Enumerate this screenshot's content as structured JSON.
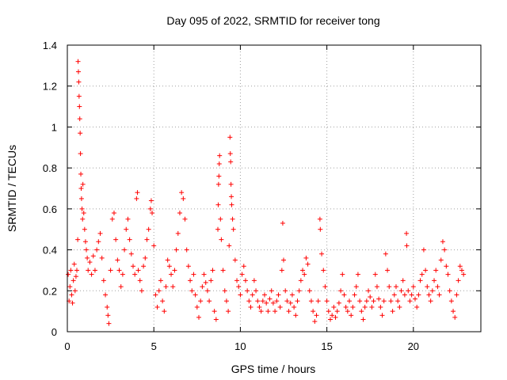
{
  "chart_data": {
    "type": "scatter",
    "title": "Day 095 of 2022, SRMTID for receiver tong",
    "xlabel": "GPS time / hours",
    "ylabel": "SRMTID / TECUs",
    "xlim": [
      0,
      23.9
    ],
    "ylim": [
      0,
      1.4
    ],
    "grid": true,
    "marker": "+",
    "color": "#ff0000",
    "xticks": [
      0,
      5,
      10,
      15,
      20
    ],
    "yticks": [
      0,
      0.2,
      0.4,
      0.6,
      0.8,
      1,
      1.2,
      1.4
    ],
    "xtick_labels": [
      "0",
      "5",
      "10",
      "15",
      "20"
    ],
    "ytick_labels": [
      "0",
      "0.2",
      "0.4",
      "0.6",
      "0.8",
      "1",
      "1.2",
      "1.4"
    ],
    "series": [
      {
        "name": "SRMTID",
        "points": [
          [
            0.05,
            0.28
          ],
          [
            0.1,
            0.15
          ],
          [
            0.15,
            0.22
          ],
          [
            0.2,
            0.3
          ],
          [
            0.25,
            0.18
          ],
          [
            0.3,
            0.14
          ],
          [
            0.35,
            0.25
          ],
          [
            0.4,
            0.33
          ],
          [
            0.45,
            0.2
          ],
          [
            0.5,
            0.27
          ],
          [
            0.55,
            0.3
          ],
          [
            0.6,
            0.45
          ],
          [
            0.62,
            1.32
          ],
          [
            0.64,
            1.27
          ],
          [
            0.66,
            1.22
          ],
          [
            0.68,
            1.15
          ],
          [
            0.7,
            1.1
          ],
          [
            0.72,
            1.04
          ],
          [
            0.74,
            0.97
          ],
          [
            0.76,
            0.87
          ],
          [
            0.78,
            0.77
          ],
          [
            0.8,
            0.7
          ],
          [
            0.82,
            0.65
          ],
          [
            0.85,
            0.6
          ],
          [
            0.88,
            0.55
          ],
          [
            0.9,
            0.72
          ],
          [
            0.95,
            0.58
          ],
          [
            1.0,
            0.5
          ],
          [
            1.05,
            0.44
          ],
          [
            1.1,
            0.4
          ],
          [
            1.15,
            0.36
          ],
          [
            1.2,
            0.3
          ],
          [
            1.3,
            0.34
          ],
          [
            1.4,
            0.28
          ],
          [
            1.5,
            0.37
          ],
          [
            1.6,
            0.3
          ],
          [
            1.7,
            0.4
          ],
          [
            1.8,
            0.44
          ],
          [
            1.9,
            0.48
          ],
          [
            2.0,
            0.36
          ],
          [
            2.1,
            0.25
          ],
          [
            2.2,
            0.18
          ],
          [
            2.3,
            0.12
          ],
          [
            2.35,
            0.08
          ],
          [
            2.4,
            0.04
          ],
          [
            2.5,
            0.3
          ],
          [
            2.6,
            0.55
          ],
          [
            2.7,
            0.58
          ],
          [
            2.8,
            0.45
          ],
          [
            2.9,
            0.35
          ],
          [
            3.0,
            0.3
          ],
          [
            3.1,
            0.22
          ],
          [
            3.2,
            0.28
          ],
          [
            3.3,
            0.4
          ],
          [
            3.4,
            0.5
          ],
          [
            3.5,
            0.55
          ],
          [
            3.6,
            0.45
          ],
          [
            3.7,
            0.38
          ],
          [
            3.8,
            0.32
          ],
          [
            3.9,
            0.28
          ],
          [
            4.0,
            0.65
          ],
          [
            4.05,
            0.68
          ],
          [
            4.1,
            0.3
          ],
          [
            4.2,
            0.25
          ],
          [
            4.3,
            0.2
          ],
          [
            4.4,
            0.32
          ],
          [
            4.5,
            0.36
          ],
          [
            4.6,
            0.45
          ],
          [
            4.7,
            0.5
          ],
          [
            4.8,
            0.6
          ],
          [
            4.85,
            0.64
          ],
          [
            4.9,
            0.58
          ],
          [
            5.0,
            0.42
          ],
          [
            5.1,
            0.18
          ],
          [
            5.2,
            0.12
          ],
          [
            5.3,
            0.2
          ],
          [
            5.4,
            0.25
          ],
          [
            5.5,
            0.15
          ],
          [
            5.6,
            0.1
          ],
          [
            5.7,
            0.22
          ],
          [
            5.8,
            0.35
          ],
          [
            5.9,
            0.32
          ],
          [
            6.0,
            0.28
          ],
          [
            6.1,
            0.22
          ],
          [
            6.2,
            0.3
          ],
          [
            6.3,
            0.4
          ],
          [
            6.4,
            0.48
          ],
          [
            6.5,
            0.58
          ],
          [
            6.6,
            0.68
          ],
          [
            6.7,
            0.65
          ],
          [
            6.8,
            0.55
          ],
          [
            6.9,
            0.4
          ],
          [
            7.0,
            0.32
          ],
          [
            7.1,
            0.25
          ],
          [
            7.2,
            0.2
          ],
          [
            7.3,
            0.28
          ],
          [
            7.4,
            0.18
          ],
          [
            7.5,
            0.12
          ],
          [
            7.6,
            0.07
          ],
          [
            7.7,
            0.15
          ],
          [
            7.8,
            0.22
          ],
          [
            7.9,
            0.28
          ],
          [
            8.0,
            0.24
          ],
          [
            8.1,
            0.2
          ],
          [
            8.2,
            0.15
          ],
          [
            8.3,
            0.25
          ],
          [
            8.4,
            0.3
          ],
          [
            8.5,
            0.1
          ],
          [
            8.6,
            0.06
          ],
          [
            8.7,
            0.5
          ],
          [
            8.72,
            0.62
          ],
          [
            8.74,
            0.72
          ],
          [
            8.76,
            0.76
          ],
          [
            8.78,
            0.82
          ],
          [
            8.8,
            0.86
          ],
          [
            8.85,
            0.55
          ],
          [
            8.9,
            0.45
          ],
          [
            9.0,
            0.3
          ],
          [
            9.1,
            0.2
          ],
          [
            9.2,
            0.15
          ],
          [
            9.3,
            0.1
          ],
          [
            9.35,
            0.42
          ],
          [
            9.4,
            0.95
          ],
          [
            9.42,
            0.87
          ],
          [
            9.44,
            0.83
          ],
          [
            9.46,
            0.72
          ],
          [
            9.48,
            0.66
          ],
          [
            9.5,
            0.62
          ],
          [
            9.55,
            0.55
          ],
          [
            9.6,
            0.5
          ],
          [
            9.7,
            0.35
          ],
          [
            9.8,
            0.25
          ],
          [
            9.9,
            0.22
          ],
          [
            10.0,
            0.18
          ],
          [
            10.1,
            0.28
          ],
          [
            10.2,
            0.32
          ],
          [
            10.3,
            0.25
          ],
          [
            10.4,
            0.2
          ],
          [
            10.5,
            0.15
          ],
          [
            10.6,
            0.12
          ],
          [
            10.7,
            0.18
          ],
          [
            10.8,
            0.25
          ],
          [
            10.9,
            0.2
          ],
          [
            11.0,
            0.15
          ],
          [
            11.1,
            0.12
          ],
          [
            11.2,
            0.1
          ],
          [
            11.3,
            0.15
          ],
          [
            11.4,
            0.18
          ],
          [
            11.5,
            0.14
          ],
          [
            11.6,
            0.1
          ],
          [
            11.7,
            0.16
          ],
          [
            11.8,
            0.2
          ],
          [
            11.9,
            0.14
          ],
          [
            12.0,
            0.1
          ],
          [
            12.1,
            0.15
          ],
          [
            12.2,
            0.18
          ],
          [
            12.3,
            0.12
          ],
          [
            12.4,
            0.3
          ],
          [
            12.45,
            0.53
          ],
          [
            12.5,
            0.35
          ],
          [
            12.6,
            0.2
          ],
          [
            12.7,
            0.15
          ],
          [
            12.8,
            0.1
          ],
          [
            12.9,
            0.14
          ],
          [
            13.0,
            0.18
          ],
          [
            13.1,
            0.12
          ],
          [
            13.2,
            0.08
          ],
          [
            13.3,
            0.15
          ],
          [
            13.4,
            0.2
          ],
          [
            13.5,
            0.25
          ],
          [
            13.6,
            0.3
          ],
          [
            13.7,
            0.28
          ],
          [
            13.8,
            0.36
          ],
          [
            13.9,
            0.33
          ],
          [
            14.0,
            0.2
          ],
          [
            14.1,
            0.15
          ],
          [
            14.2,
            0.1
          ],
          [
            14.3,
            0.05
          ],
          [
            14.4,
            0.08
          ],
          [
            14.5,
            0.15
          ],
          [
            14.6,
            0.55
          ],
          [
            14.62,
            0.5
          ],
          [
            14.7,
            0.38
          ],
          [
            14.8,
            0.3
          ],
          [
            14.9,
            0.22
          ],
          [
            15.0,
            0.15
          ],
          [
            15.1,
            0.1
          ],
          [
            15.2,
            0.06
          ],
          [
            15.3,
            0.08
          ],
          [
            15.4,
            0.12
          ],
          [
            15.5,
            0.07
          ],
          [
            15.6,
            0.1
          ],
          [
            15.7,
            0.14
          ],
          [
            15.8,
            0.2
          ],
          [
            15.9,
            0.28
          ],
          [
            16.0,
            0.18
          ],
          [
            16.1,
            0.12
          ],
          [
            16.2,
            0.1
          ],
          [
            16.3,
            0.15
          ],
          [
            16.4,
            0.08
          ],
          [
            16.5,
            0.12
          ],
          [
            16.6,
            0.18
          ],
          [
            16.7,
            0.22
          ],
          [
            16.8,
            0.28
          ],
          [
            16.9,
            0.15
          ],
          [
            17.0,
            0.1
          ],
          [
            17.1,
            0.06
          ],
          [
            17.2,
            0.12
          ],
          [
            17.3,
            0.15
          ],
          [
            17.4,
            0.2
          ],
          [
            17.5,
            0.17
          ],
          [
            17.6,
            0.12
          ],
          [
            17.7,
            0.15
          ],
          [
            17.8,
            0.28
          ],
          [
            17.9,
            0.22
          ],
          [
            18.0,
            0.16
          ],
          [
            18.1,
            0.12
          ],
          [
            18.2,
            0.08
          ],
          [
            18.3,
            0.15
          ],
          [
            18.4,
            0.38
          ],
          [
            18.5,
            0.3
          ],
          [
            18.6,
            0.22
          ],
          [
            18.7,
            0.15
          ],
          [
            18.8,
            0.1
          ],
          [
            18.9,
            0.18
          ],
          [
            19.0,
            0.22
          ],
          [
            19.1,
            0.15
          ],
          [
            19.2,
            0.12
          ],
          [
            19.3,
            0.2
          ],
          [
            19.4,
            0.25
          ],
          [
            19.5,
            0.18
          ],
          [
            19.6,
            0.48
          ],
          [
            19.62,
            0.42
          ],
          [
            19.7,
            0.2
          ],
          [
            19.8,
            0.15
          ],
          [
            19.9,
            0.18
          ],
          [
            20.0,
            0.22
          ],
          [
            20.1,
            0.16
          ],
          [
            20.2,
            0.12
          ],
          [
            20.3,
            0.18
          ],
          [
            20.4,
            0.25
          ],
          [
            20.5,
            0.28
          ],
          [
            20.6,
            0.4
          ],
          [
            20.7,
            0.3
          ],
          [
            20.8,
            0.22
          ],
          [
            20.9,
            0.18
          ],
          [
            21.0,
            0.15
          ],
          [
            21.1,
            0.2
          ],
          [
            21.2,
            0.25
          ],
          [
            21.3,
            0.3
          ],
          [
            21.4,
            0.22
          ],
          [
            21.5,
            0.18
          ],
          [
            21.6,
            0.35
          ],
          [
            21.7,
            0.44
          ],
          [
            21.8,
            0.4
          ],
          [
            21.9,
            0.32
          ],
          [
            22.0,
            0.28
          ],
          [
            22.1,
            0.2
          ],
          [
            22.2,
            0.15
          ],
          [
            22.3,
            0.1
          ],
          [
            22.4,
            0.07
          ],
          [
            22.5,
            0.18
          ],
          [
            22.6,
            0.25
          ],
          [
            22.7,
            0.32
          ],
          [
            22.8,
            0.3
          ],
          [
            22.9,
            0.28
          ]
        ]
      }
    ]
  }
}
